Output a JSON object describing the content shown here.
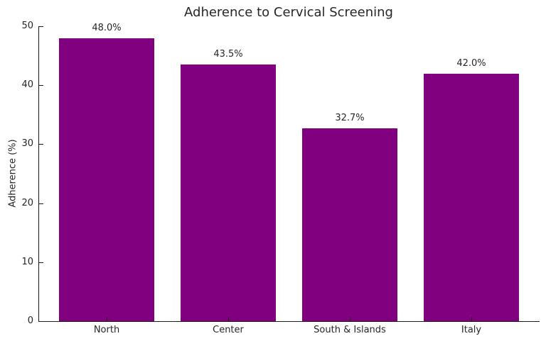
{
  "chart_data": {
    "type": "bar",
    "title": "Adherence to Cervical Screening",
    "xlabel": "",
    "ylabel": "Adherence (%)",
    "categories": [
      "North",
      "Center",
      "South & Islands",
      "Italy"
    ],
    "values": [
      48.0,
      43.5,
      32.7,
      42.0
    ],
    "value_labels": [
      "48.0%",
      "43.5%",
      "32.7%",
      "42.0%"
    ],
    "yticks": [
      0,
      10,
      20,
      30,
      40,
      50
    ],
    "ylim": [
      0,
      50
    ],
    "bar_color": "#800080",
    "axis_color": "#1a1a1a",
    "text_color": "#262626",
    "grid": false,
    "legend": null
  }
}
